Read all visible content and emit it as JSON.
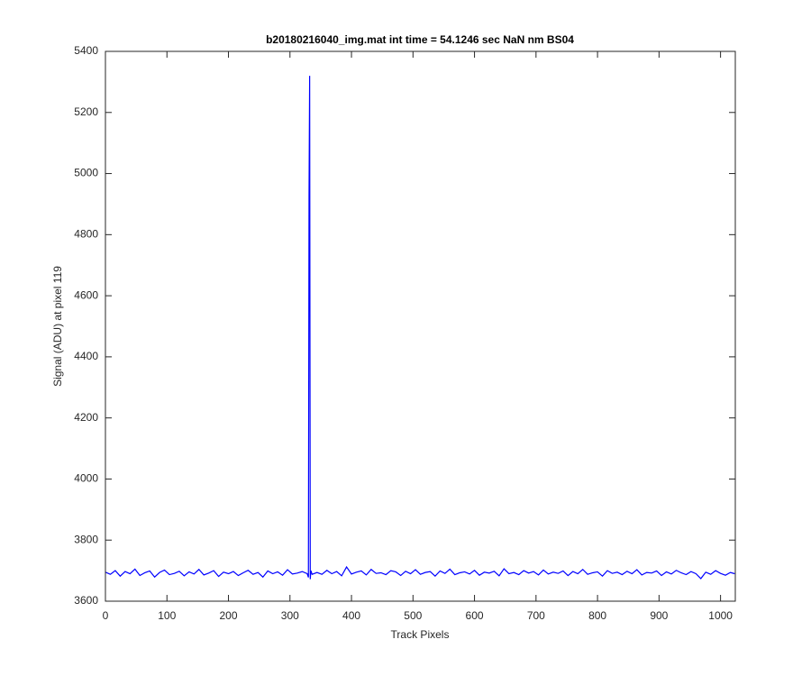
{
  "chart_data": {
    "type": "line",
    "title": "b20180216040_img.mat int time = 54.1246 sec  NaN nm BS04",
    "x_label": "Track Pixels",
    "y_label": "Signal (ADU) at pixel 119",
    "xlim": [
      0,
      1024
    ],
    "ylim": [
      3600,
      5400
    ],
    "xticks": [
      0,
      100,
      200,
      300,
      400,
      500,
      600,
      700,
      800,
      900,
      1000
    ],
    "yticks": [
      3600,
      3800,
      4000,
      4200,
      4400,
      4600,
      4800,
      5000,
      5200,
      5400
    ],
    "grid": false,
    "x": [
      0,
      8,
      16,
      24,
      32,
      40,
      48,
      56,
      64,
      72,
      80,
      88,
      96,
      104,
      112,
      120,
      128,
      136,
      144,
      152,
      160,
      168,
      176,
      184,
      192,
      200,
      208,
      216,
      224,
      232,
      240,
      248,
      256,
      264,
      272,
      280,
      288,
      296,
      304,
      312,
      320,
      328,
      330,
      331,
      332,
      333,
      334,
      336,
      344,
      352,
      360,
      368,
      376,
      384,
      392,
      400,
      408,
      416,
      424,
      432,
      440,
      448,
      456,
      464,
      472,
      480,
      488,
      496,
      504,
      512,
      520,
      528,
      536,
      544,
      552,
      560,
      568,
      576,
      584,
      592,
      600,
      608,
      616,
      624,
      632,
      640,
      648,
      656,
      664,
      672,
      680,
      688,
      696,
      704,
      712,
      720,
      728,
      736,
      744,
      752,
      760,
      768,
      776,
      784,
      792,
      800,
      808,
      816,
      824,
      832,
      840,
      848,
      856,
      864,
      872,
      880,
      888,
      896,
      904,
      912,
      920,
      928,
      936,
      944,
      952,
      960,
      968,
      976,
      984,
      992,
      1000,
      1008,
      1016,
      1023
    ],
    "series": [
      {
        "color": "#0000ff",
        "values": [
          3695,
          3688,
          3700,
          3682,
          3697,
          3690,
          3705,
          3684,
          3693,
          3699,
          3679,
          3694,
          3702,
          3687,
          3691,
          3698,
          3683,
          3696,
          3689,
          3704,
          3686,
          3692,
          3700,
          3681,
          3695,
          3690,
          3697,
          3684,
          3693,
          3701,
          3688,
          3694,
          3679,
          3699,
          3690,
          3696,
          3685,
          3703,
          3689,
          3692,
          3697,
          3690,
          3678,
          4930,
          5320,
          3672,
          3700,
          3688,
          3694,
          3688,
          3701,
          3690,
          3697,
          3683,
          3712,
          3689,
          3695,
          3699,
          3686,
          3704,
          3691,
          3693,
          3687,
          3700,
          3696,
          3684,
          3698,
          3690,
          3703,
          3688,
          3694,
          3697,
          3682,
          3699,
          3691,
          3705,
          3687,
          3693,
          3696,
          3689,
          3701,
          3685,
          3695,
          3692,
          3698,
          3683,
          3706,
          3690,
          3694,
          3687,
          3700,
          3692,
          3697,
          3686,
          3702,
          3689,
          3695,
          3691,
          3699,
          3684,
          3697,
          3690,
          3704,
          3688,
          3693,
          3696,
          3682,
          3700,
          3691,
          3695,
          3687,
          3698,
          3690,
          3703,
          3686,
          3694,
          3692,
          3699,
          3684,
          3696,
          3689,
          3701,
          3693,
          3687,
          3697,
          3690,
          3674,
          3695,
          3688,
          3700,
          3691,
          3685,
          3694,
          3690
        ]
      }
    ]
  }
}
